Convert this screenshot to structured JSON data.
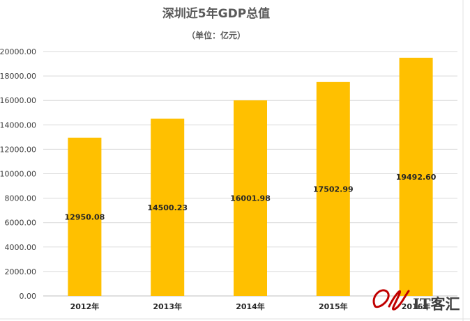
{
  "chart_data": {
    "type": "bar",
    "title": "深圳近5年GDP总值",
    "subtitle": "（单位：亿元）",
    "categories": [
      "2012年",
      "2013年",
      "2014年",
      "2015年",
      "2016年"
    ],
    "values": [
      12950.08,
      14500.23,
      16001.98,
      17502.99,
      19492.6
    ],
    "value_labels": [
      "12950.08",
      "14500.23",
      "16001.98",
      "17502.99",
      "19492.60"
    ],
    "ylim": [
      0,
      20000
    ],
    "yticks": [
      "0.00",
      "2000.00",
      "4000.00",
      "6000.00",
      "8000.00",
      "10000.00",
      "12000.00",
      "14000.00",
      "16000.00",
      "18000.00",
      "20000.00"
    ],
    "xlabel": "",
    "ylabel": "",
    "grid": true,
    "bar_color": "#ffc000",
    "data_label_position": "center"
  },
  "watermark": {
    "text": "IT客汇",
    "mark_color": "#c00000"
  }
}
